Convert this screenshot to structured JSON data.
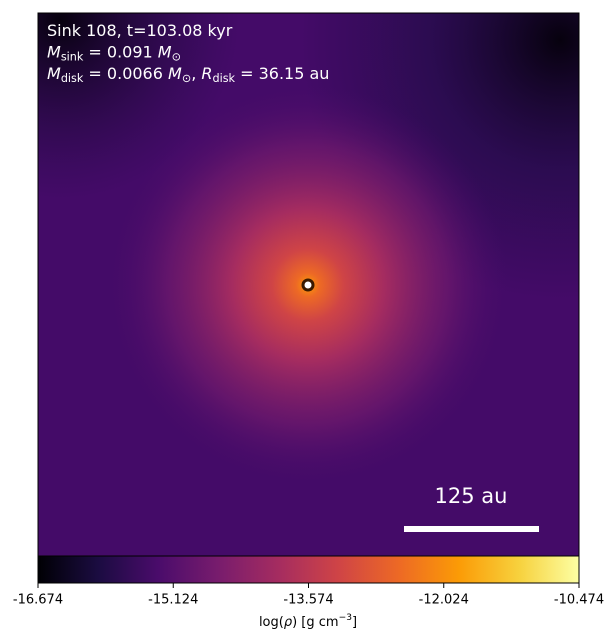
{
  "chart_data": {
    "type": "image",
    "annotations": [
      [
        {
          "text": "Sink 108, t=103.08 kyr"
        }
      ],
      [
        {
          "italic": "M"
        },
        {
          "sub": "sink"
        },
        {
          "text": " = 0.091 "
        },
        {
          "italic": "M"
        },
        {
          "sub": "⊙"
        }
      ],
      [
        {
          "italic": "M"
        },
        {
          "sub": "disk"
        },
        {
          "text": " = 0.0066 "
        },
        {
          "italic": "M"
        },
        {
          "sub": "⊙"
        },
        {
          "text": ", "
        },
        {
          "italic": "R"
        },
        {
          "sub": "disk"
        },
        {
          "text": " = 36.15 au"
        }
      ]
    ],
    "scale_bar_label": "125 au",
    "colormap": [
      "#000004",
      "#1b0c41",
      "#4a0c6b",
      "#781c6d",
      "#a52c60",
      "#cf4446",
      "#ed6925",
      "#fb9b06",
      "#f7d13d",
      "#fcffa4"
    ],
    "clim": [
      -16.674,
      -10.474
    ],
    "cticks": [
      -16.674,
      -15.124,
      -13.574,
      -12.024,
      -10.474
    ],
    "colorbar_label": [
      {
        "text": "log("
      },
      {
        "italic": "ρ"
      },
      {
        "text": ") [g cm"
      },
      {
        "sup": "−3"
      },
      {
        "text": "]"
      }
    ]
  }
}
